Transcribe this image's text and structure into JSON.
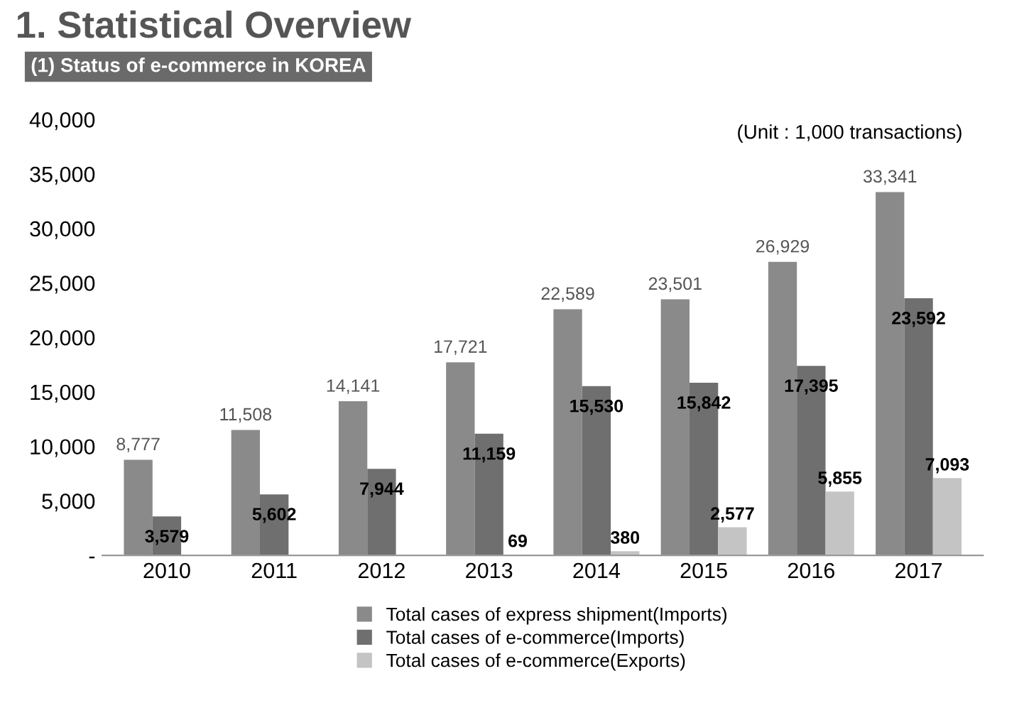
{
  "chart_data": {
    "type": "bar",
    "title": "1. Statistical Overview",
    "subtitle": "(1) Status of e-commerce in KOREA",
    "annotations": [
      "(Unit : 1,000 transactions)"
    ],
    "categories": [
      "2010",
      "2011",
      "2012",
      "2013",
      "2014",
      "2015",
      "2016",
      "2017"
    ],
    "series": [
      {
        "name": "Total cases of express shipment(Imports)",
        "color": "#8a8a8a",
        "values": [
          8777,
          11508,
          14141,
          17721,
          22589,
          23501,
          26929,
          33341
        ],
        "value_labels": [
          "8,777",
          "11,508",
          "14,141",
          "17,721",
          "22,589",
          "23,501",
          "26,929",
          "33,341"
        ]
      },
      {
        "name": "Total cases of e-commerce(Imports)",
        "color": "#6f6f6f",
        "values": [
          3579,
          5602,
          7944,
          11159,
          15530,
          15842,
          17395,
          23592
        ],
        "value_labels": [
          "3,579",
          "5,602",
          "7,944",
          "11,159",
          "15,530",
          "15,842",
          "17,395",
          "23,592"
        ]
      },
      {
        "name": "Total cases of e-commerce(Exports)",
        "color": "#c4c4c4",
        "values": [
          null,
          null,
          null,
          69,
          380,
          2577,
          5855,
          7093
        ],
        "value_labels": [
          null,
          null,
          null,
          "69",
          "380",
          "2,577",
          "5,855",
          "7,093"
        ]
      }
    ],
    "ylim": [
      0,
      40000
    ],
    "yticks": [
      {
        "value": 0,
        "label": "-"
      },
      {
        "value": 5000,
        "label": "5,000"
      },
      {
        "value": 10000,
        "label": "10,000"
      },
      {
        "value": 15000,
        "label": "15,000"
      },
      {
        "value": 20000,
        "label": "20,000"
      },
      {
        "value": 25000,
        "label": "25,000"
      },
      {
        "value": 30000,
        "label": "30,000"
      },
      {
        "value": 35000,
        "label": "35,000"
      },
      {
        "value": 40000,
        "label": "40,000"
      }
    ],
    "grid": false,
    "legend": "bottom"
  }
}
